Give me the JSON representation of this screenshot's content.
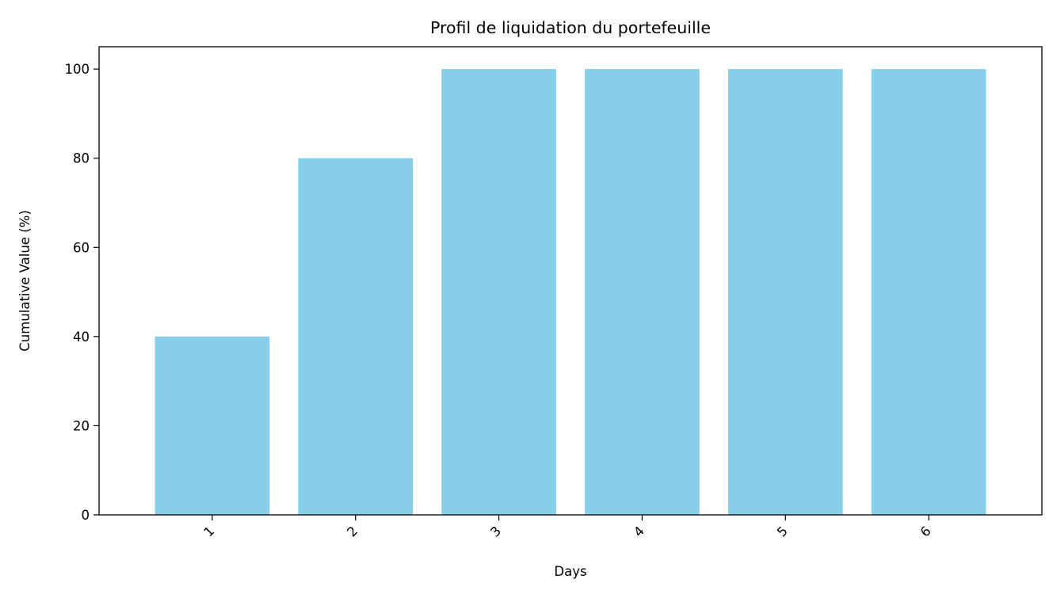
{
  "chart_data": {
    "type": "bar",
    "title": "Profil de liquidation du portefeuille",
    "xlabel": "Days",
    "ylabel": "Cumulative Value (%)",
    "categories": [
      "1",
      "2",
      "3",
      "4",
      "5",
      "6"
    ],
    "values": [
      40,
      80,
      100,
      100,
      100,
      100
    ],
    "ylim": [
      0,
      105
    ],
    "yticks": [
      0,
      20,
      40,
      60,
      80,
      100
    ],
    "ytick_labels": [
      "0",
      "20",
      "40",
      "60",
      "80",
      "100"
    ],
    "xtick_rotation_deg": 45,
    "grid": false,
    "legend": "none",
    "bar_color": "#87CEEB",
    "axis_color": "#000000"
  }
}
